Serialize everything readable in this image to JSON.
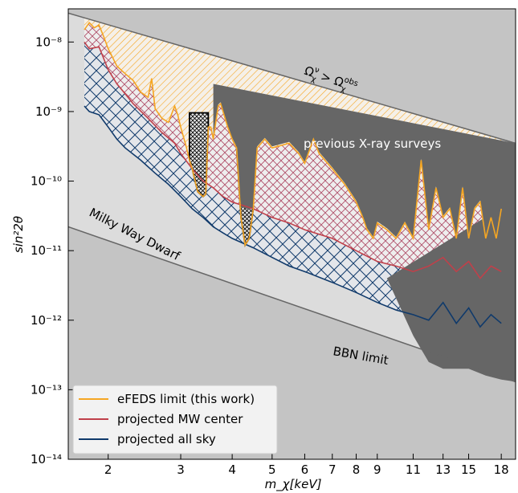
{
  "chart_data": {
    "type": "line",
    "xlabel": "m_χ[keV]",
    "ylabel": "sin²2θ",
    "xscale": "log",
    "yscale": "log",
    "xlim": [
      1.6,
      19.5
    ],
    "ylim": [
      1e-14,
      3e-08
    ],
    "x_ticks": [
      2,
      3,
      4,
      5,
      6,
      7,
      8,
      9,
      11,
      13,
      15,
      18
    ],
    "y_ticks": [
      {
        "value": 1e-08,
        "label": "10⁻⁸"
      },
      {
        "value": 1e-09,
        "label": "10⁻⁹"
      },
      {
        "value": 1e-10,
        "label": "10⁻¹⁰"
      },
      {
        "value": 1e-11,
        "label": "10⁻¹¹"
      },
      {
        "value": 1e-12,
        "label": "10⁻¹²"
      },
      {
        "value": 1e-13,
        "label": "10⁻¹³"
      },
      {
        "value": 1e-14,
        "label": "10⁻¹⁴"
      }
    ],
    "annotations": {
      "overproduction": "Ω",
      "overproduction_sup1": "ν",
      "overproduction_sub1": "χ",
      "overproduction_op": " > Ω",
      "overproduction_sup2": "obs",
      "overproduction_sub2": "χ",
      "xray": "previous X-ray surveys",
      "milkyway": "Milky Way Dwarf",
      "bbn": "BBN limit"
    },
    "legend": {
      "placement": "lower-left",
      "entries": [
        {
          "label": "eFEDS limit (this work)",
          "color": "#f5a623"
        },
        {
          "label": "projected MW center",
          "color": "#c0404a"
        },
        {
          "label": "projected all sky",
          "color": "#103a6b"
        }
      ]
    },
    "regions": {
      "overproduction_line": [
        [
          1.6,
          2.6e-08
        ],
        [
          19.5,
          3.5e-10
        ]
      ],
      "bbn_line": [
        [
          1.6,
          2.2e-11
        ],
        [
          19.5,
          1.3e-13
        ]
      ]
    },
    "series": [
      {
        "name": "eFEDS limit (this work)",
        "color": "#f5a623",
        "points": [
          [
            1.75,
            1.5e-08
          ],
          [
            1.8,
            1.9e-08
          ],
          [
            1.85,
            1.6e-08
          ],
          [
            1.9,
            1.75e-08
          ],
          [
            1.95,
            1.2e-08
          ],
          [
            2.0,
            8e-09
          ],
          [
            2.05,
            6e-09
          ],
          [
            2.1,
            4.5e-09
          ],
          [
            2.2,
            3.5e-09
          ],
          [
            2.3,
            2.8e-09
          ],
          [
            2.4,
            1.9e-09
          ],
          [
            2.5,
            1.6e-09
          ],
          [
            2.55,
            3e-09
          ],
          [
            2.6,
            1.1e-09
          ],
          [
            2.7,
            8e-10
          ],
          [
            2.8,
            7e-10
          ],
          [
            2.9,
            1.2e-09
          ],
          [
            2.95,
            9e-10
          ],
          [
            3.0,
            6e-10
          ],
          [
            3.1,
            3e-10
          ],
          [
            3.15,
            2e-10
          ],
          [
            3.2,
            1.5e-10
          ],
          [
            3.25,
            1e-10
          ],
          [
            3.3,
            7e-11
          ],
          [
            3.4,
            6e-11
          ],
          [
            3.45,
            6.5e-11
          ],
          [
            3.5,
            6e-10
          ],
          [
            3.55,
            6e-10
          ],
          [
            3.6,
            4e-10
          ],
          [
            3.7,
            1.2e-09
          ],
          [
            3.75,
            1.3e-09
          ],
          [
            3.8,
            1e-09
          ],
          [
            3.9,
            6e-10
          ],
          [
            4.0,
            4e-10
          ],
          [
            4.1,
            3e-10
          ],
          [
            4.2,
            3e-11
          ],
          [
            4.3,
            1.2e-11
          ],
          [
            4.4,
            1.5e-11
          ],
          [
            4.5,
            4e-11
          ],
          [
            4.6,
            3e-10
          ],
          [
            4.8,
            4e-10
          ],
          [
            5.0,
            3e-10
          ],
          [
            5.5,
            3.5e-10
          ],
          [
            5.8,
            2.5e-10
          ],
          [
            6.0,
            1.8e-10
          ],
          [
            6.3,
            4e-10
          ],
          [
            6.5,
            2.5e-10
          ],
          [
            7.0,
            1.5e-10
          ],
          [
            7.5,
            9e-11
          ],
          [
            8.0,
            5e-11
          ],
          [
            8.3,
            3e-11
          ],
          [
            8.5,
            2e-11
          ],
          [
            8.8,
            1.5e-11
          ],
          [
            9.0,
            2.5e-11
          ],
          [
            9.5,
            2e-11
          ],
          [
            10.0,
            1.5e-11
          ],
          [
            10.5,
            2.5e-11
          ],
          [
            11.0,
            1.5e-11
          ],
          [
            11.5,
            2e-10
          ],
          [
            12.0,
            2e-11
          ],
          [
            12.5,
            8e-11
          ],
          [
            13.0,
            3e-11
          ],
          [
            13.5,
            4e-11
          ],
          [
            14.0,
            1.5e-11
          ],
          [
            14.5,
            8e-11
          ],
          [
            15.0,
            1.5e-11
          ],
          [
            15.5,
            4e-11
          ],
          [
            16.0,
            5e-11
          ],
          [
            16.5,
            1.5e-11
          ],
          [
            17.0,
            3e-11
          ],
          [
            17.5,
            1.5e-11
          ],
          [
            18.0,
            4e-11
          ]
        ]
      },
      {
        "name": "projected MW center",
        "color": "#c0404a",
        "points": [
          [
            1.75,
            1e-08
          ],
          [
            1.8,
            8e-09
          ],
          [
            1.9,
            8.5e-09
          ],
          [
            2.0,
            4e-09
          ],
          [
            2.1,
            2.5e-09
          ],
          [
            2.2,
            1.8e-09
          ],
          [
            2.3,
            1.3e-09
          ],
          [
            2.5,
            8e-10
          ],
          [
            2.7,
            5e-10
          ],
          [
            2.9,
            3.5e-10
          ],
          [
            3.0,
            2.5e-10
          ],
          [
            3.2,
            1.5e-10
          ],
          [
            3.4,
            1e-10
          ],
          [
            3.6,
            8e-11
          ],
          [
            3.8,
            6e-11
          ],
          [
            4.0,
            5e-11
          ],
          [
            4.5,
            4e-11
          ],
          [
            5.0,
            3e-11
          ],
          [
            5.5,
            2.5e-11
          ],
          [
            6.0,
            2e-11
          ],
          [
            7.0,
            1.5e-11
          ],
          [
            8.0,
            1e-11
          ],
          [
            9.0,
            7e-12
          ],
          [
            10.0,
            6e-12
          ],
          [
            11.0,
            5e-12
          ],
          [
            12.0,
            6e-12
          ],
          [
            13.0,
            8e-12
          ],
          [
            14.0,
            5e-12
          ],
          [
            15.0,
            7e-12
          ],
          [
            16.0,
            4e-12
          ],
          [
            17.0,
            6e-12
          ],
          [
            18.0,
            5e-12
          ]
        ]
      },
      {
        "name": "projected all sky",
        "color": "#103a6b",
        "points": [
          [
            1.75,
            1.2e-09
          ],
          [
            1.8,
            1e-09
          ],
          [
            1.9,
            9e-10
          ],
          [
            2.0,
            6e-10
          ],
          [
            2.1,
            4e-10
          ],
          [
            2.2,
            3e-10
          ],
          [
            2.4,
            2e-10
          ],
          [
            2.6,
            1.3e-10
          ],
          [
            2.8,
            9e-11
          ],
          [
            3.0,
            6e-11
          ],
          [
            3.2,
            4e-11
          ],
          [
            3.4,
            3e-11
          ],
          [
            3.6,
            2.2e-11
          ],
          [
            3.8,
            1.8e-11
          ],
          [
            4.0,
            1.5e-11
          ],
          [
            4.5,
            1.1e-11
          ],
          [
            5.0,
            8e-12
          ],
          [
            5.5,
            6e-12
          ],
          [
            6.0,
            5e-12
          ],
          [
            7.0,
            3.5e-12
          ],
          [
            8.0,
            2.5e-12
          ],
          [
            9.0,
            1.8e-12
          ],
          [
            10.0,
            1.4e-12
          ],
          [
            11.0,
            1.2e-12
          ],
          [
            12.0,
            1e-12
          ],
          [
            13.0,
            1.8e-12
          ],
          [
            14.0,
            9e-13
          ],
          [
            15.0,
            1.5e-12
          ],
          [
            16.0,
            8e-13
          ],
          [
            17.0,
            1.2e-12
          ],
          [
            18.0,
            9e-13
          ]
        ]
      }
    ]
  }
}
